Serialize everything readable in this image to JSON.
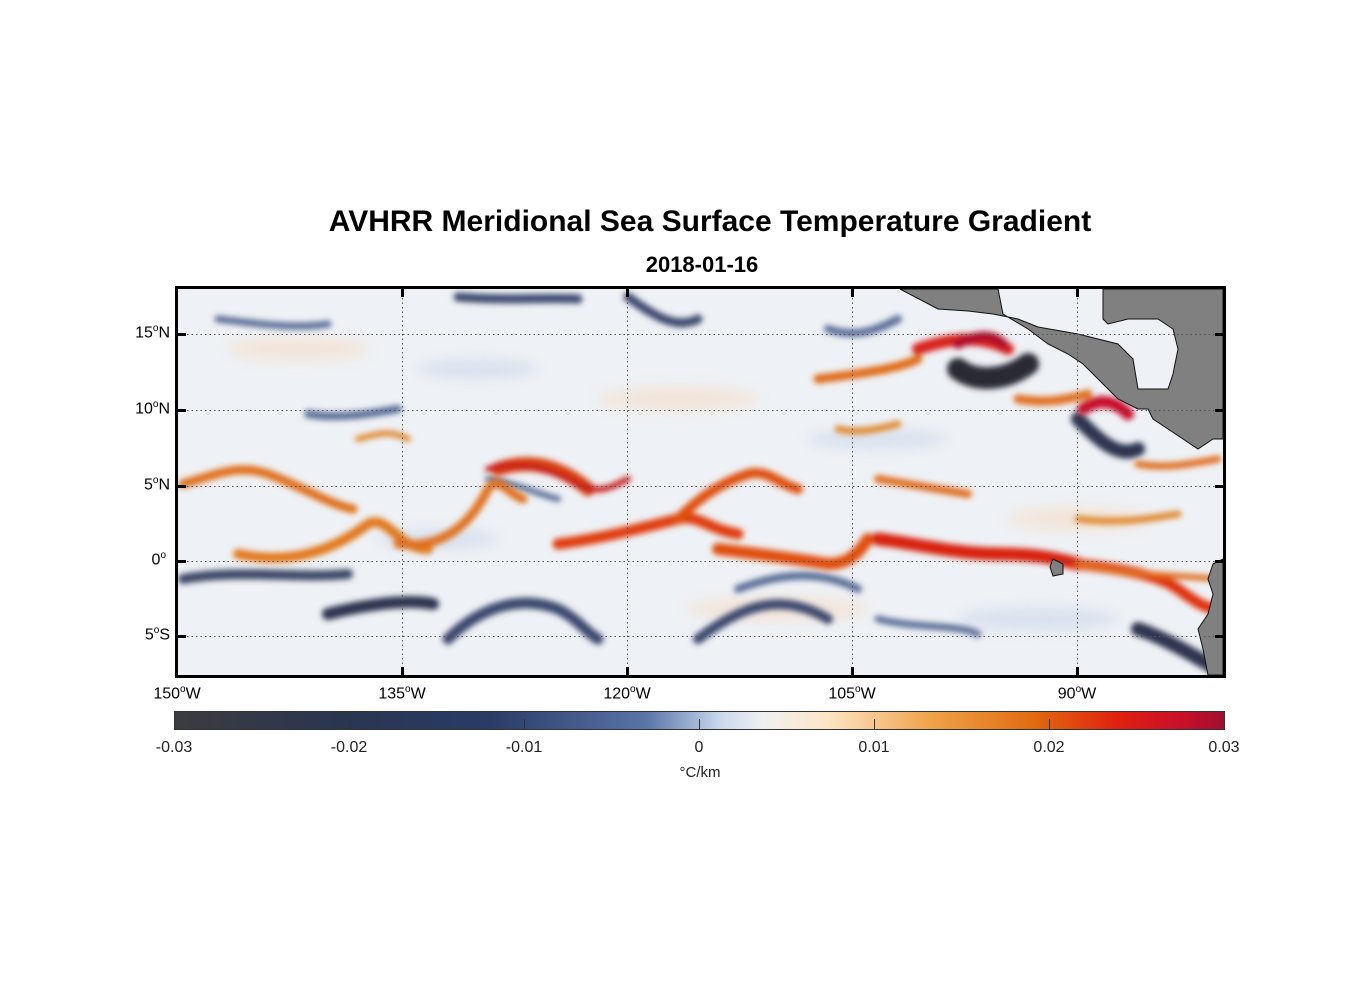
{
  "title": "AVHRR Meridional Sea Surface Temperature Gradient",
  "subtitle": "2018-01-16",
  "y_labels": [
    {
      "base": "15",
      "sup": "o",
      "hemi": "N"
    },
    {
      "base": "10",
      "sup": "o",
      "hemi": "N"
    },
    {
      "base": "5",
      "sup": "o",
      "hemi": "N"
    },
    {
      "base": "0",
      "sup": "o",
      "hemi": ""
    },
    {
      "base": "5",
      "sup": "o",
      "hemi": "S"
    }
  ],
  "x_labels": [
    {
      "base": "150",
      "sup": "o",
      "hemi": "W"
    },
    {
      "base": "135",
      "sup": "o",
      "hemi": "W"
    },
    {
      "base": "120",
      "sup": "o",
      "hemi": "W"
    },
    {
      "base": "105",
      "sup": "o",
      "hemi": "W"
    },
    {
      "base": "90",
      "sup": "o",
      "hemi": "W"
    }
  ],
  "colorbar": {
    "labels": [
      "-0.03",
      "-0.02",
      "-0.01",
      "0",
      "0.01",
      "0.02",
      "0.03"
    ],
    "unit": "°C/km",
    "colors": [
      "#3c3c40",
      "#2a3b66",
      "#c9d8ec",
      "#f0f0f0",
      "#f0a34a",
      "#e02010",
      "#a01030"
    ]
  },
  "land_color": "#808080"
}
